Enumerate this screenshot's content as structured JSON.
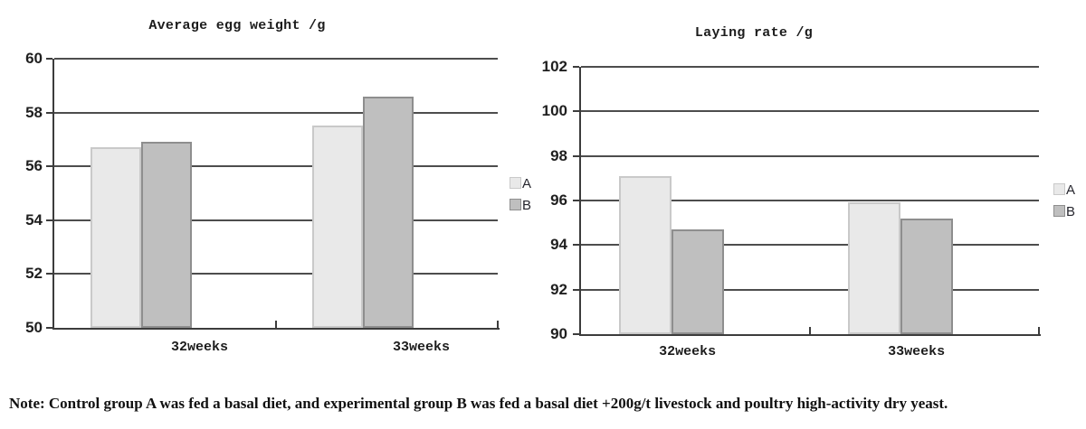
{
  "chart_data": [
    {
      "type": "bar",
      "title": "Average egg weight /g",
      "categories": [
        "32weeks",
        "33weeks"
      ],
      "series": [
        {
          "name": "A",
          "values": [
            56.7,
            57.5
          ],
          "fill": "#e9e9e9",
          "border": "#c9c9c9"
        },
        {
          "name": "B",
          "values": [
            56.9,
            58.6
          ],
          "fill": "#bfbfbf",
          "border": "#8e8e8e"
        }
      ],
      "ylim": [
        50,
        60
      ],
      "ytick_step": 2,
      "ytick_labels": [
        "60",
        "58",
        "56",
        "54",
        "52",
        "50"
      ],
      "xlabel": "",
      "ylabel": "",
      "grid": true,
      "legend_position": "right"
    },
    {
      "type": "bar",
      "title": "Laying rate /g",
      "categories": [
        "32weeks",
        "33weeks"
      ],
      "series": [
        {
          "name": "A",
          "values": [
            97.1,
            95.9
          ],
          "fill": "#e9e9e9",
          "border": "#c9c9c9"
        },
        {
          "name": "B",
          "values": [
            94.7,
            95.2
          ],
          "fill": "#bfbfbf",
          "border": "#8e8e8e"
        }
      ],
      "ylim": [
        90,
        102
      ],
      "ytick_step": 2,
      "ytick_labels": [
        "102",
        "100",
        "98",
        "96",
        "94",
        "92",
        "90"
      ],
      "xlabel": "",
      "ylabel": "",
      "grid": true,
      "legend_position": "right"
    }
  ],
  "colors": {
    "gridline": "#4d4d4d",
    "axis": "#3c3c3c",
    "text": "#1c1c1c",
    "background": "#ffffff"
  },
  "note": "Note: Control group A was fed a basal diet, and experimental group B was fed a basal diet +200g/t livestock and poultry high-activity dry yeast."
}
